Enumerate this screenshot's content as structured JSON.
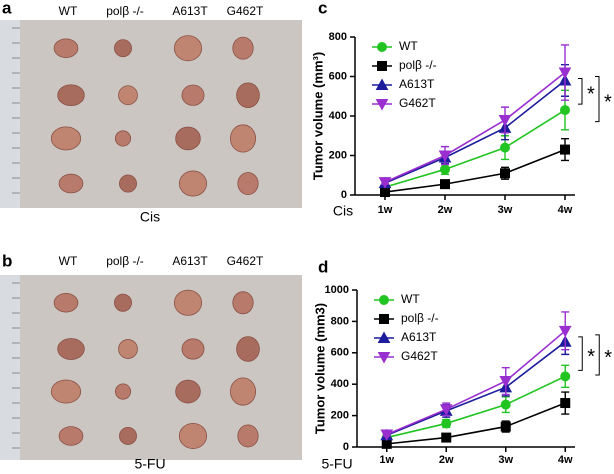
{
  "photos": [
    {
      "label": "a",
      "columns": [
        "WT",
        "polβ -/-",
        "A613T",
        "G462T"
      ],
      "treatment": "Cis"
    },
    {
      "label": "b",
      "columns": [
        "WT",
        "polβ -/-",
        "A613T",
        "G462T"
      ],
      "treatment": "5-FU"
    }
  ],
  "chart_data": [
    {
      "type": "line",
      "label": "c",
      "treatment": "Cis",
      "y_label": "Tumor volume (mm³)",
      "categories": [
        "1w",
        "2w",
        "3w",
        "4w"
      ],
      "ylim": [
        0,
        800
      ],
      "yticks": [
        0,
        200,
        400,
        600,
        800
      ],
      "annotations": [
        "*",
        "*"
      ],
      "series": [
        {
          "name": "WT",
          "color": "#22c422",
          "marker": "circle",
          "values": [
            40,
            130,
            240,
            430
          ],
          "errors": [
            10,
            25,
            60,
            100
          ]
        },
        {
          "name": "polβ -/-",
          "color": "#000000",
          "marker": "square",
          "values": [
            15,
            55,
            110,
            230
          ],
          "errors": [
            5,
            15,
            30,
            55
          ]
        },
        {
          "name": "A613T",
          "color": "#1c1c9c",
          "marker": "triangle-up",
          "values": [
            60,
            190,
            340,
            580
          ],
          "errors": [
            10,
            30,
            60,
            80
          ]
        },
        {
          "name": "G462T",
          "color": "#9a2fd0",
          "marker": "triangle-down",
          "values": [
            65,
            200,
            380,
            620
          ],
          "errors": [
            10,
            45,
            65,
            140
          ]
        }
      ]
    },
    {
      "type": "line",
      "label": "d",
      "treatment": "5-FU",
      "y_label": "Tumor volume (mm3)",
      "categories": [
        "1w",
        "2w",
        "3w",
        "4w"
      ],
      "ylim": [
        0,
        1000
      ],
      "yticks": [
        0,
        200,
        400,
        600,
        800,
        1000
      ],
      "annotations": [
        "*",
        "*"
      ],
      "series": [
        {
          "name": "WT",
          "color": "#22c422",
          "marker": "circle",
          "values": [
            60,
            150,
            270,
            450
          ],
          "errors": [
            10,
            25,
            50,
            70
          ]
        },
        {
          "name": "polβ -/-",
          "color": "#000000",
          "marker": "square",
          "values": [
            20,
            60,
            130,
            280
          ],
          "errors": [
            5,
            10,
            35,
            70
          ]
        },
        {
          "name": "A613T",
          "color": "#1c1c9c",
          "marker": "triangle-up",
          "values": [
            75,
            230,
            380,
            670
          ],
          "errors": [
            10,
            40,
            55,
            80
          ]
        },
        {
          "name": "G462T",
          "color": "#9a2fd0",
          "marker": "triangle-down",
          "values": [
            80,
            240,
            420,
            740
          ],
          "errors": [
            10,
            40,
            85,
            120
          ]
        }
      ]
    }
  ]
}
